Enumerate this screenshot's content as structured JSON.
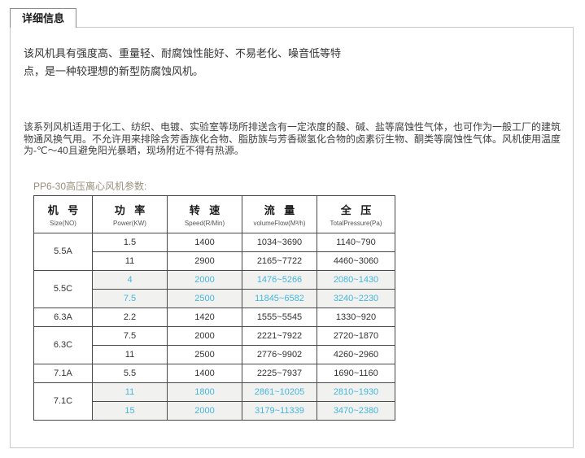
{
  "tab": {
    "label": "详细信息"
  },
  "paragraphs": {
    "intro": "该风机具有强度高、重量轻、耐腐蚀性能好、不易老化、噪音低等特点，是一种较理想的新型防腐蚀风机。",
    "usage": "该系列风机适用于化工、纺织、电镀、实验室等场所排送含有一定浓度的酸、碱、盐等腐蚀性气体，也可作为一般工厂的建筑物通风换气用。不允许用来排除含芳香族化合物、脂肪族与芳香碳氢化合物的卤素衍生物、酮类等腐蚀性气体。风机使用温度为-℃～40且避免阳光暴晒，现场附近不得有热源。"
  },
  "table": {
    "title": "PP6-30高压离心风机参数:",
    "columns": [
      {
        "zh": "机 号",
        "en": "Size(NO)"
      },
      {
        "zh": "功 率",
        "en": "Power(KW)"
      },
      {
        "zh": "转 速",
        "en": "Speed(R/Min)"
      },
      {
        "zh": "流 量",
        "en": "volumeFlow(M³/h)"
      },
      {
        "zh": "全 压",
        "en": "TotalPressure(Pa)"
      }
    ],
    "groups": [
      {
        "size": "5.5A",
        "highlight": false,
        "rows": [
          [
            "1.5",
            "1400",
            "1034~3690",
            "1140~790"
          ],
          [
            "11",
            "2900",
            "2165~7722",
            "4460~3060"
          ]
        ]
      },
      {
        "size": "5.5C",
        "highlight": true,
        "rows": [
          [
            "4",
            "2000",
            "1476~5266",
            "2080~1430"
          ],
          [
            "7.5",
            "2500",
            "11845~6582",
            "3240~2230"
          ]
        ]
      },
      {
        "size": "6.3A",
        "highlight": false,
        "rows": [
          [
            "2.2",
            "1420",
            "1555~5545",
            "1330~920"
          ]
        ]
      },
      {
        "size": "6.3C",
        "highlight": false,
        "rows": [
          [
            "7.5",
            "2000",
            "2221~7922",
            "2720~1870"
          ],
          [
            "11",
            "2500",
            "2776~9902",
            "4260~2960"
          ]
        ]
      },
      {
        "size": "7.1A",
        "highlight": false,
        "rows": [
          [
            "5.5",
            "1400",
            "2225~7937",
            "1690~1160"
          ]
        ]
      },
      {
        "size": "7.1C",
        "highlight": true,
        "rows": [
          [
            "11",
            "1800",
            "2861~10205",
            "2810~1930"
          ],
          [
            "15",
            "2000",
            "3179~11339",
            "3470~2380"
          ]
        ]
      }
    ],
    "colors": {
      "highlight_text": "#45b6dc",
      "highlight_bg": "#f1f1ef",
      "border": "#4a4a4a"
    }
  }
}
